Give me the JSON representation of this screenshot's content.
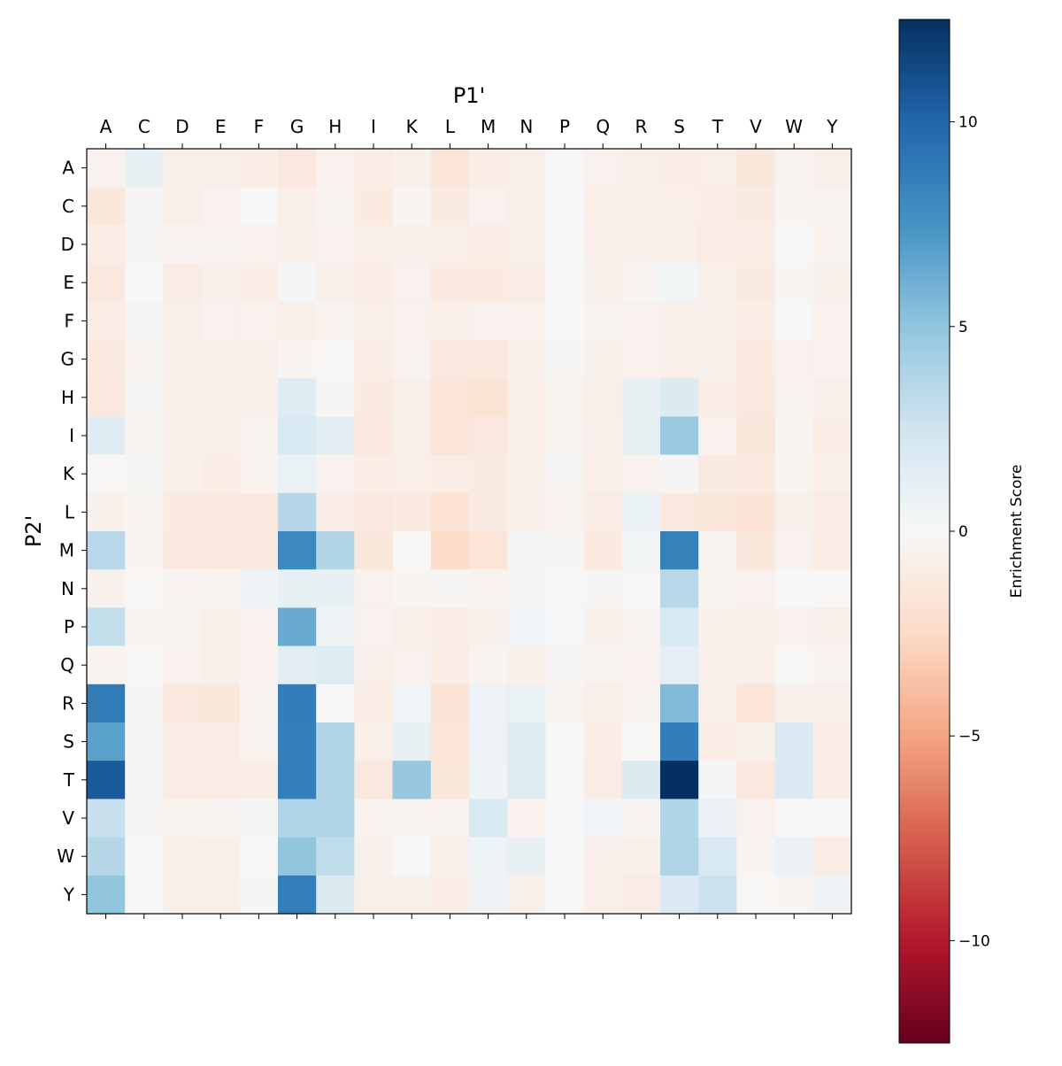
{
  "chart_data": {
    "type": "heatmap",
    "xlabel": "P1'",
    "ylabel": "P2'",
    "x_categories": [
      "A",
      "C",
      "D",
      "E",
      "F",
      "G",
      "H",
      "I",
      "K",
      "L",
      "M",
      "N",
      "P",
      "Q",
      "R",
      "S",
      "T",
      "V",
      "W",
      "Y"
    ],
    "y_categories": [
      "A",
      "C",
      "D",
      "E",
      "F",
      "G",
      "H",
      "I",
      "K",
      "L",
      "M",
      "N",
      "P",
      "Q",
      "R",
      "S",
      "T",
      "V",
      "W",
      "Y"
    ],
    "colormap": "RdBu",
    "vmin": -12.5,
    "vmax": 12.5,
    "colorbar": {
      "label": "Enrichment Score",
      "ticks": [
        -10,
        -5,
        0,
        5,
        10
      ],
      "tick_labels": [
        "−10",
        "−5",
        "0",
        "5",
        "10"
      ]
    },
    "values": [
      [
        -0.5,
        1.0,
        -0.6,
        -0.7,
        -0.9,
        -1.3,
        -0.5,
        -0.9,
        -0.6,
        -1.6,
        -0.9,
        -0.8,
        0.0,
        -0.5,
        -0.6,
        -0.9,
        -0.8,
        -1.4,
        -0.4,
        -0.7
      ],
      [
        -1.4,
        -0.2,
        -0.8,
        -0.5,
        0.0,
        -0.7,
        -0.3,
        -1.2,
        -0.3,
        -1.1,
        -0.5,
        -0.8,
        0.0,
        -0.8,
        -0.7,
        -0.8,
        -0.9,
        -1.1,
        -0.3,
        -0.4
      ],
      [
        -0.9,
        -0.2,
        -0.3,
        -0.4,
        -0.5,
        -0.6,
        -0.5,
        -0.8,
        -0.7,
        -0.8,
        -0.9,
        -0.7,
        0.0,
        -0.7,
        -0.6,
        -0.7,
        -1.0,
        -0.9,
        0.0,
        -0.4
      ],
      [
        -1.3,
        0.0,
        -1.0,
        -0.7,
        -0.9,
        0.2,
        -0.7,
        -0.9,
        -0.5,
        -1.2,
        -1.2,
        -1.0,
        0.0,
        -0.6,
        -0.3,
        0.3,
        -0.7,
        -1.1,
        -0.3,
        -0.6
      ],
      [
        -0.9,
        -0.2,
        -0.7,
        -0.5,
        -0.5,
        -0.8,
        -0.4,
        -0.8,
        -0.5,
        -0.8,
        -0.5,
        -0.5,
        0.0,
        -0.4,
        -0.5,
        -0.7,
        -0.7,
        -0.9,
        0.0,
        -0.5
      ],
      [
        -1.2,
        -0.3,
        -0.7,
        -0.6,
        -0.7,
        -0.3,
        -0.1,
        -1.0,
        -0.4,
        -1.3,
        -1.3,
        -0.7,
        -0.2,
        -0.6,
        -0.5,
        -0.7,
        -0.6,
        -1.2,
        -0.5,
        -0.5
      ],
      [
        -1.3,
        -0.2,
        -0.7,
        -0.8,
        -0.6,
        1.5,
        -0.2,
        -1.2,
        -0.7,
        -1.6,
        -1.8,
        -0.8,
        -0.3,
        -0.8,
        1.0,
        1.8,
        -0.9,
        -1.3,
        -0.4,
        -0.7
      ],
      [
        1.5,
        -0.3,
        -0.7,
        -0.8,
        -0.4,
        2.0,
        1.3,
        -1.3,
        -0.7,
        -1.6,
        -1.3,
        -0.8,
        -0.3,
        -0.7,
        1.0,
        4.7,
        -0.5,
        -1.4,
        -0.3,
        -0.9
      ],
      [
        -0.1,
        -0.2,
        -0.6,
        -0.9,
        -0.4,
        0.9,
        -0.5,
        -0.9,
        -0.8,
        -1.0,
        -1.1,
        -0.6,
        -0.2,
        -0.8,
        -0.5,
        -0.2,
        -1.1,
        -1.2,
        -0.4,
        -0.8
      ],
      [
        -0.6,
        -0.3,
        -1.2,
        -1.2,
        -1.3,
        3.6,
        -1.0,
        -1.3,
        -1.2,
        -1.9,
        -1.1,
        -0.7,
        -0.4,
        -1.0,
        0.9,
        -1.3,
        -1.5,
        -1.7,
        -0.6,
        -1.0
      ],
      [
        3.5,
        -0.3,
        -1.3,
        -1.3,
        -1.2,
        8.0,
        3.7,
        -1.4,
        -0.1,
        -2.4,
        -1.6,
        -0.2,
        -0.2,
        -1.2,
        0.3,
        8.5,
        -0.3,
        -1.4,
        -0.5,
        -1.0
      ],
      [
        -0.6,
        -0.1,
        -0.3,
        -0.4,
        0.6,
        1.0,
        1.0,
        -0.5,
        -0.3,
        -0.2,
        -0.4,
        -0.2,
        -0.1,
        -0.2,
        -0.1,
        3.5,
        -0.4,
        -0.5,
        0.0,
        -0.1
      ],
      [
        3.0,
        -0.3,
        -0.4,
        -0.7,
        -0.5,
        6.3,
        0.6,
        -0.5,
        -0.8,
        -0.9,
        -0.6,
        0.4,
        0.1,
        -0.6,
        -0.3,
        2.0,
        -0.6,
        -0.6,
        -0.5,
        -0.7
      ],
      [
        -0.4,
        -0.1,
        -0.5,
        -0.7,
        -0.5,
        1.3,
        1.6,
        -0.7,
        -0.5,
        -0.9,
        -0.4,
        -0.6,
        -0.2,
        -0.4,
        -0.5,
        1.2,
        -0.7,
        -0.8,
        -0.1,
        -0.4
      ],
      [
        8.8,
        -0.2,
        -1.3,
        -1.4,
        -0.4,
        8.7,
        0.0,
        -1.0,
        0.4,
        -1.7,
        0.7,
        0.9,
        -0.3,
        -0.8,
        -0.4,
        5.5,
        -0.8,
        -1.6,
        -0.7,
        -0.7
      ],
      [
        6.8,
        -0.2,
        -1.0,
        -1.0,
        -0.4,
        8.6,
        3.7,
        -0.8,
        1.0,
        -1.6,
        0.7,
        1.7,
        0.0,
        -0.9,
        -0.1,
        8.7,
        -0.9,
        -0.6,
        1.9,
        -0.9
      ],
      [
        10.6,
        -0.2,
        -1.0,
        -1.0,
        -0.9,
        8.6,
        3.7,
        -1.3,
        4.8,
        -1.5,
        0.6,
        1.7,
        0.0,
        -1.0,
        1.8,
        12.5,
        0.2,
        -1.3,
        1.9,
        -0.9
      ],
      [
        2.8,
        -0.2,
        -0.4,
        -0.3,
        -0.2,
        3.8,
        3.8,
        -0.4,
        -0.4,
        -0.4,
        2.0,
        -0.5,
        0.0,
        0.4,
        -0.3,
        3.7,
        0.8,
        -0.5,
        0.0,
        -0.1
      ],
      [
        3.6,
        0.0,
        -0.7,
        -0.8,
        -0.1,
        5.0,
        3.2,
        -0.6,
        0.0,
        -0.7,
        0.6,
        1.0,
        0.0,
        -0.7,
        -0.8,
        3.8,
        2.0,
        -0.3,
        0.8,
        -1.0
      ],
      [
        5.0,
        0.0,
        -0.7,
        -0.8,
        0.2,
        8.6,
        1.8,
        -0.8,
        -0.6,
        -0.9,
        0.5,
        -0.6,
        0.0,
        -0.7,
        -1.0,
        1.9,
        2.7,
        -0.1,
        -0.3,
        0.5
      ]
    ]
  }
}
